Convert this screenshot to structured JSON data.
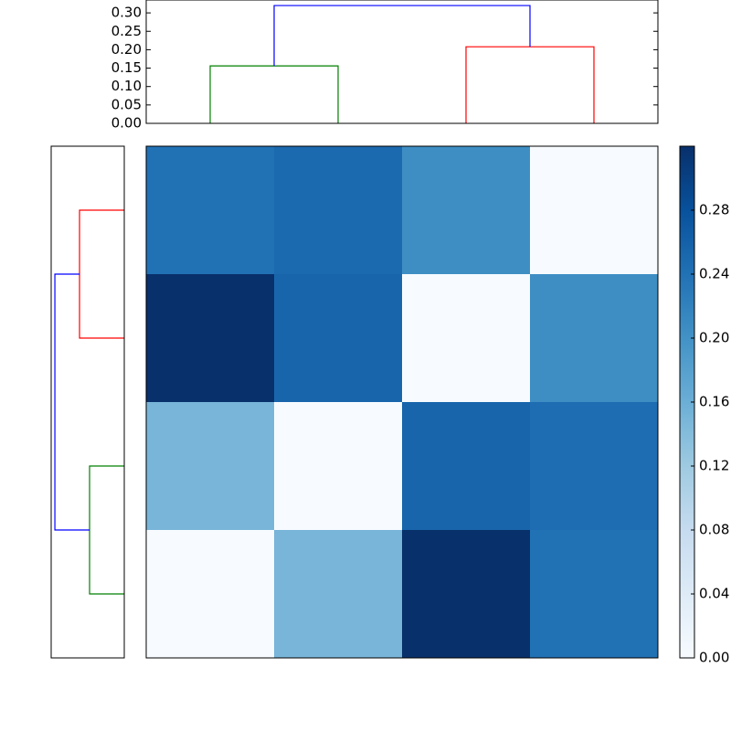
{
  "chart_data": [
    {
      "type": "dendrogram",
      "orientation": "top",
      "xlim": [
        0,
        40
      ],
      "ylim": [
        0,
        0.335
      ],
      "yticks": [
        {
          "value": 0,
          "label": "0.00"
        },
        {
          "value": 0.05,
          "label": "0.05"
        },
        {
          "value": 0.1,
          "label": "0.10"
        },
        {
          "value": 0.15,
          "label": "0.15"
        },
        {
          "value": 0.2,
          "label": "0.20"
        },
        {
          "value": 0.25,
          "label": "0.25"
        },
        {
          "value": 0.3,
          "label": "0.30"
        }
      ],
      "links": [
        {
          "color": "#008000",
          "x": [
            5,
            5,
            15,
            15
          ],
          "y": [
            0,
            0.156,
            0.156,
            0
          ]
        },
        {
          "color": "#ff0000",
          "x": [
            25,
            25,
            35,
            35
          ],
          "y": [
            0,
            0.208,
            0.208,
            0
          ]
        },
        {
          "color": "#0000ff",
          "x": [
            10,
            10,
            30,
            30
          ],
          "y": [
            0.156,
            0.32,
            0.32,
            0.208
          ]
        }
      ]
    },
    {
      "type": "dendrogram",
      "orientation": "left",
      "xlim": [
        0.335,
        0
      ],
      "ylim": [
        40,
        0
      ],
      "links": [
        {
          "color": "#ff0000",
          "x": [
            0,
            0.205,
            0.205,
            0
          ],
          "y": [
            5,
            5,
            15,
            15
          ]
        },
        {
          "color": "#008000",
          "x": [
            0,
            0.159,
            0.159,
            0
          ],
          "y": [
            25,
            25,
            35,
            35
          ]
        },
        {
          "color": "#0000ff",
          "x": [
            0.205,
            0.318,
            0.318,
            0.159
          ],
          "y": [
            10,
            10,
            30,
            30
          ]
        }
      ]
    },
    {
      "type": "heatmap",
      "colormap": "Blues",
      "clim": [
        0,
        0.32
      ],
      "values": [
        [
          0.24,
          0.25,
          0.205,
          0
        ],
        [
          0.32,
          0.255,
          0,
          0.205
        ],
        [
          0.15,
          0,
          0.255,
          0.245
        ],
        [
          0,
          0.15,
          0.32,
          0.24
        ]
      ],
      "colorbar_ticks": [
        {
          "value": 0,
          "label": "0.00"
        },
        {
          "value": 0.04,
          "label": "0.04"
        },
        {
          "value": 0.08,
          "label": "0.08"
        },
        {
          "value": 0.12,
          "label": "0.12"
        },
        {
          "value": 0.16,
          "label": "0.16"
        },
        {
          "value": 0.2,
          "label": "0.20"
        },
        {
          "value": 0.24,
          "label": "0.24"
        },
        {
          "value": 0.28,
          "label": "0.28"
        }
      ]
    }
  ]
}
